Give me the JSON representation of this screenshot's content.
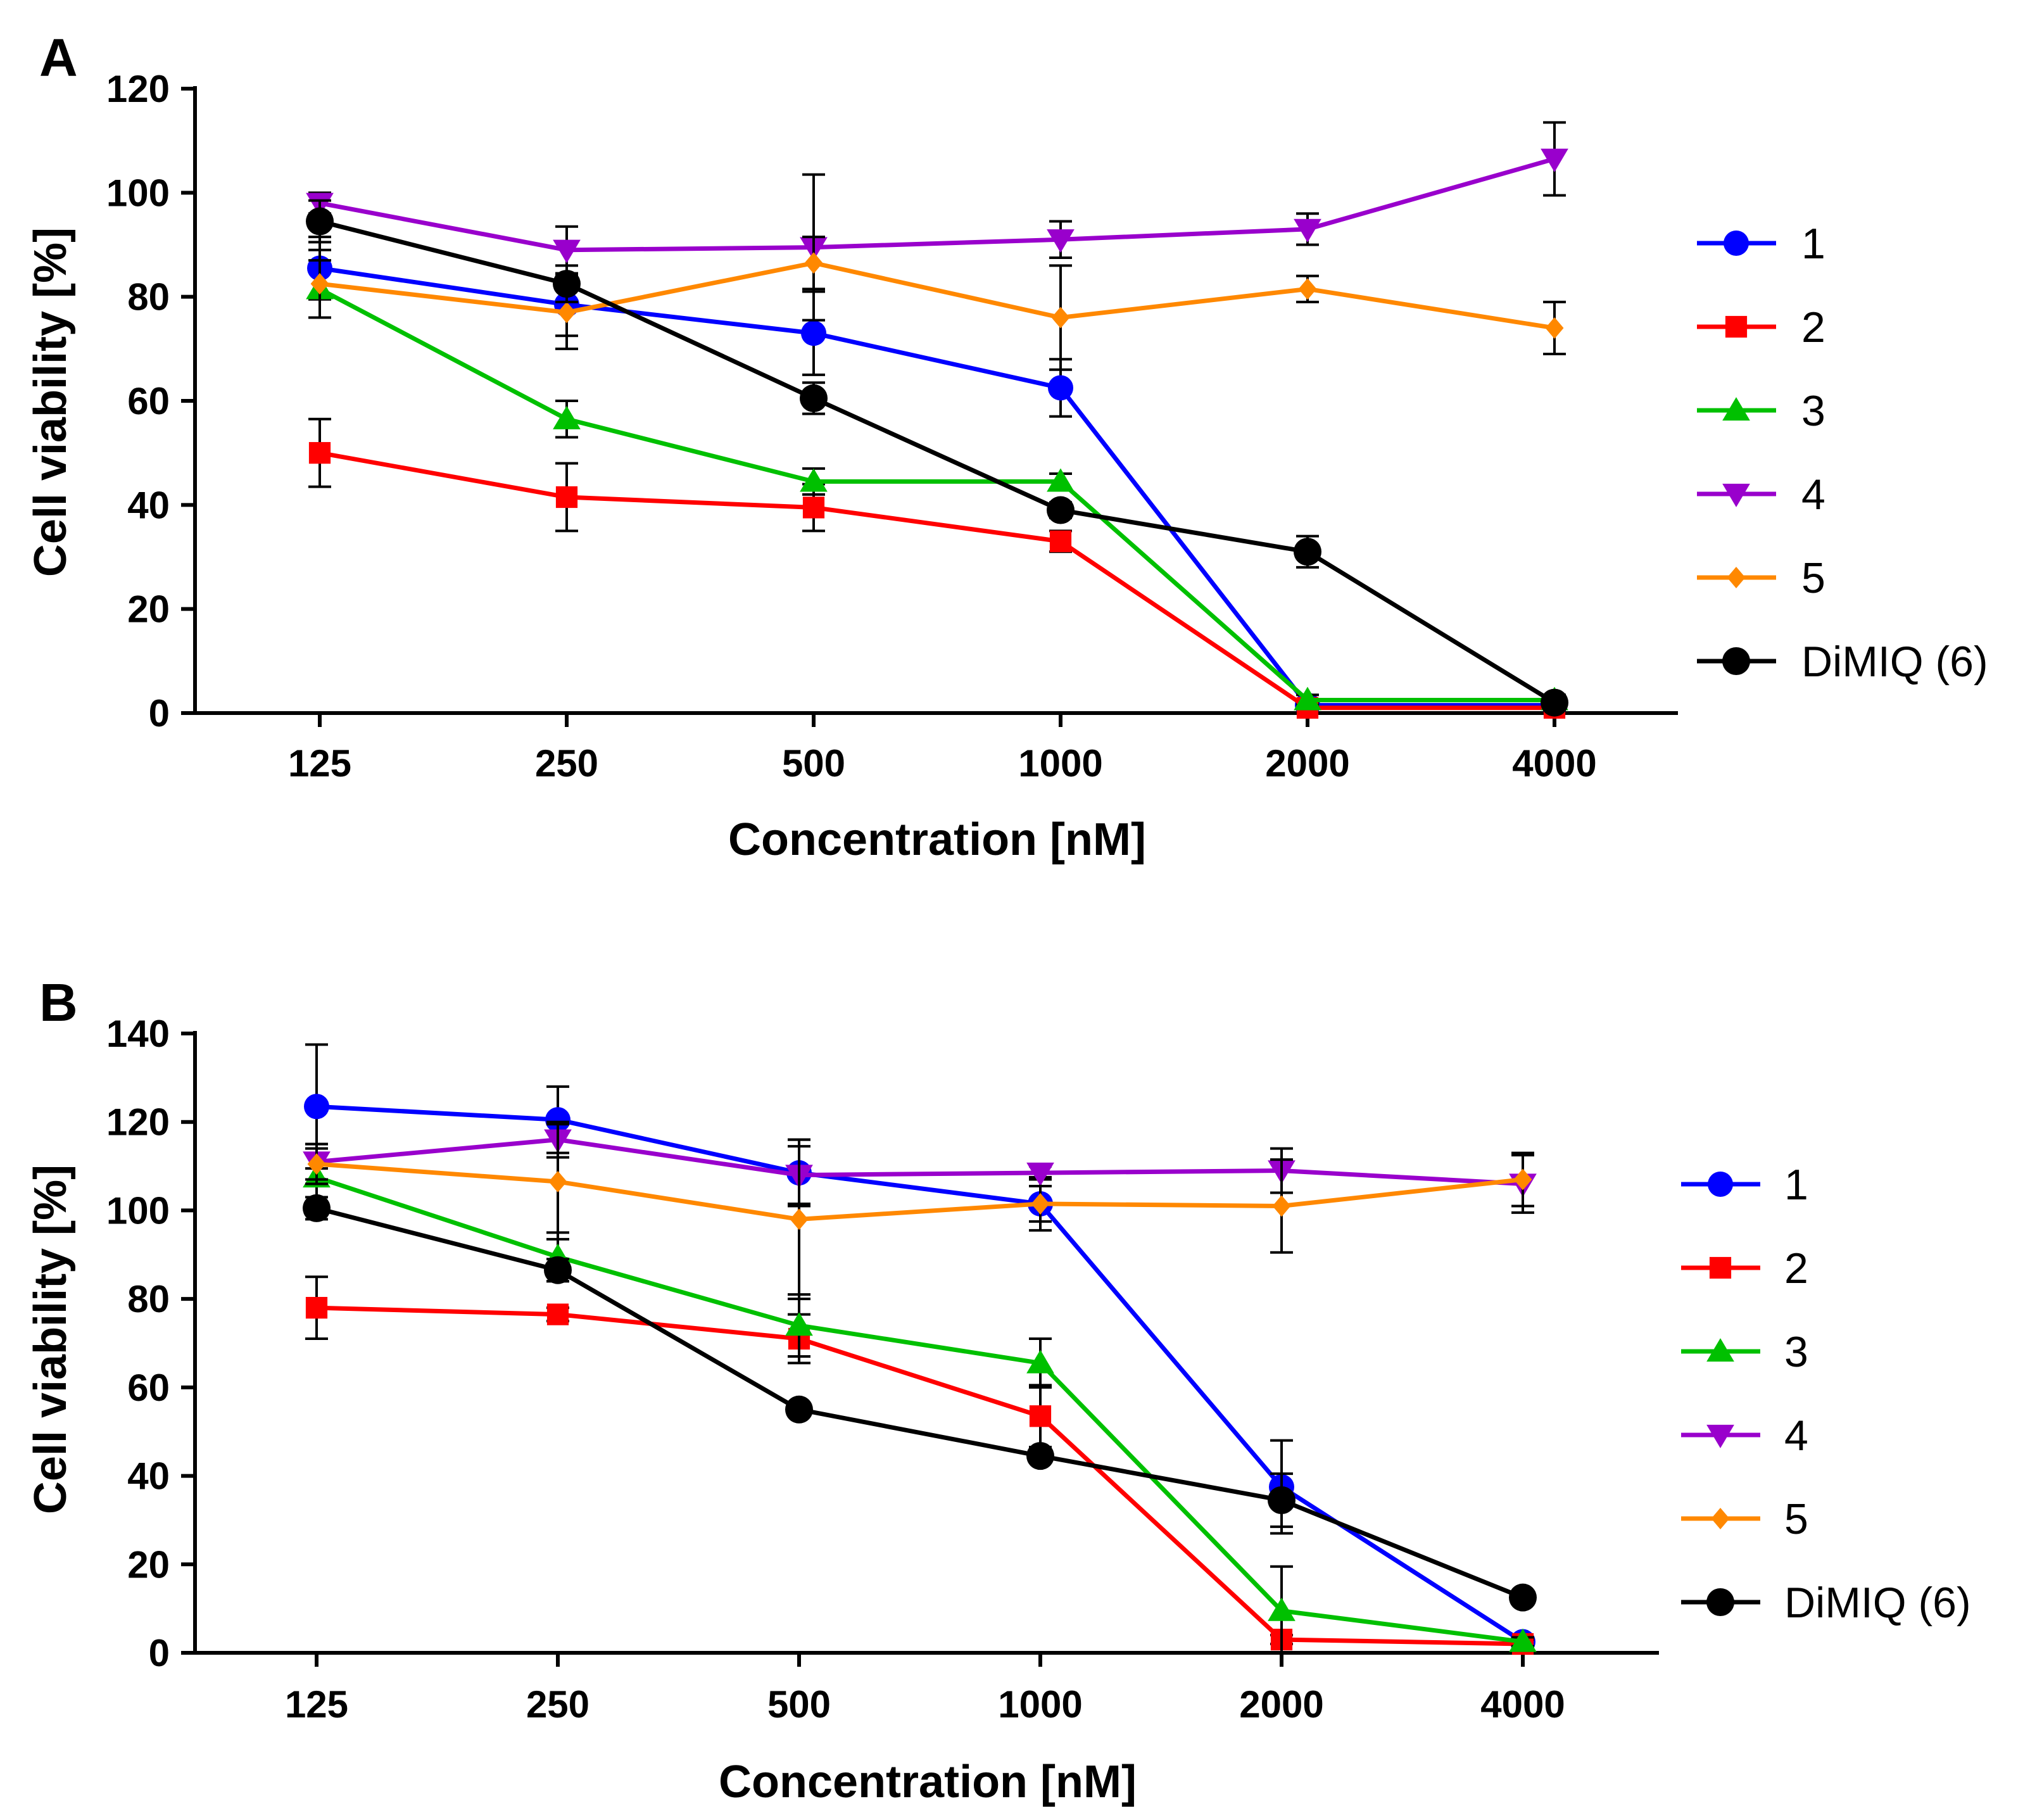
{
  "chart_data": [
    {
      "type": "line",
      "panel_label": "A",
      "title": "",
      "xlabel": "Concentration [nM]",
      "ylabel": "Cell viability [%]",
      "categories": [
        "125",
        "250",
        "500",
        "1000",
        "2000",
        "4000"
      ],
      "ylim": [
        0,
        120
      ],
      "yticks": [
        0,
        20,
        40,
        60,
        80,
        100,
        120
      ],
      "legend_position": "right",
      "grid": false,
      "series": [
        {
          "name": "1",
          "color": "#0000ff",
          "marker": "circle",
          "values": [
            85.5,
            78.5,
            73,
            62.5,
            1.5,
            1.5
          ],
          "errors": [
            6,
            6,
            8,
            5.5,
            1,
            1
          ]
        },
        {
          "name": "2",
          "color": "#ff0000",
          "marker": "square",
          "values": [
            50,
            41.5,
            39.5,
            33,
            1,
            1
          ],
          "errors": [
            6.5,
            6.5,
            4.5,
            2,
            1,
            1
          ]
        },
        {
          "name": "3",
          "color": "#00c000",
          "marker": "triangle-up",
          "values": [
            81.5,
            56.5,
            44.5,
            44.5,
            2.5,
            2.5
          ],
          "errors": [
            5.5,
            3.5,
            2.5,
            1.5,
            1,
            1
          ]
        },
        {
          "name": "4",
          "color": "#9900cc",
          "marker": "triangle-down",
          "values": [
            98,
            89,
            89.5,
            91,
            93,
            106.5
          ],
          "errors": [
            2,
            4.5,
            14,
            3.5,
            3,
            7
          ]
        },
        {
          "name": "5",
          "color": "#ff8800",
          "marker": "diamond",
          "values": [
            82.5,
            77,
            86.5,
            76,
            81.5,
            74
          ],
          "errors": [
            6.5,
            7,
            5,
            10,
            2.5,
            5
          ]
        },
        {
          "name": "DiMIQ (6)",
          "color": "#000000",
          "marker": "circle",
          "values": [
            94.5,
            82.5,
            60.5,
            39,
            31,
            2
          ],
          "errors": [
            4,
            3.5,
            3,
            1.5,
            3,
            1
          ]
        }
      ]
    },
    {
      "type": "line",
      "panel_label": "B",
      "title": "",
      "xlabel": "Concentration [nM]",
      "ylabel": "Cell viability [%]",
      "categories": [
        "125",
        "250",
        "500",
        "1000",
        "2000",
        "4000"
      ],
      "ylim": [
        0,
        140
      ],
      "yticks": [
        0,
        20,
        40,
        60,
        80,
        100,
        120,
        140
      ],
      "legend_position": "right",
      "grid": false,
      "series": [
        {
          "name": "1",
          "color": "#0000ff",
          "marker": "circle",
          "values": [
            123.5,
            120.5,
            108.5,
            101.5,
            37.5,
            2.5
          ],
          "errors": [
            14,
            7.5,
            7.5,
            6,
            10.5,
            1
          ]
        },
        {
          "name": "2",
          "color": "#ff0000",
          "marker": "square",
          "values": [
            78,
            76.5,
            71,
            53.5,
            3,
            2
          ],
          "errors": [
            7,
            1.5,
            5.5,
            7,
            1,
            1
          ]
        },
        {
          "name": "3",
          "color": "#00c000",
          "marker": "triangle-up",
          "values": [
            107.5,
            89.5,
            74,
            65.5,
            9.5,
            2.5
          ],
          "errors": [
            6.5,
            5.5,
            7,
            5.5,
            10,
            1
          ]
        },
        {
          "name": "4",
          "color": "#9900cc",
          "marker": "triangle-down",
          "values": [
            111,
            116,
            108,
            108.5,
            109,
            106
          ],
          "errors": [
            4,
            4,
            6.5,
            1.5,
            5,
            6.5
          ]
        },
        {
          "name": "5",
          "color": "#ff8800",
          "marker": "diamond",
          "values": [
            110.5,
            106.5,
            98,
            101.5,
            101,
            107
          ],
          "errors": [
            4.5,
            13,
            18,
            4,
            10.5,
            6
          ]
        },
        {
          "name": "DiMIQ (6)",
          "color": "#000000",
          "marker": "circle",
          "values": [
            100.5,
            86.5,
            55,
            44.5,
            34.5,
            12.5
          ],
          "errors": [
            2.5,
            2.5,
            1.5,
            1.5,
            6,
            1
          ]
        }
      ]
    }
  ]
}
